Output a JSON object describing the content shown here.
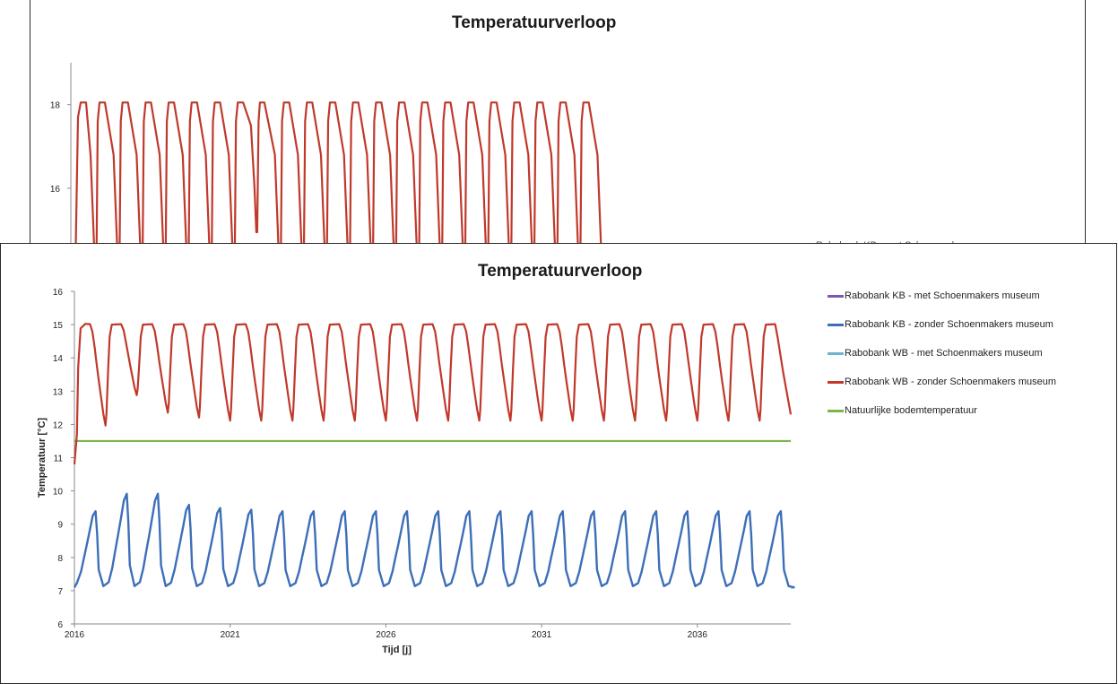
{
  "chart_data": [
    {
      "type": "line",
      "title": "Temperatuurverloop",
      "ylim": [
        14.5,
        19
      ],
      "yticks": [
        16,
        18
      ],
      "grid": false,
      "series": [
        {
          "color": "#c0392b",
          "pattern": "annual-cycle",
          "start_year": 2016,
          "cycles": 23,
          "max": 18.05,
          "min_below": 14.5,
          "anomaly": {
            "cycle": 7,
            "min": 14.95
          }
        }
      ],
      "truncated_legend": "Rabobank KB - met Schoenmakersmuseum"
    },
    {
      "type": "line",
      "title": "Temperatuurverloop",
      "xlabel": "Tijd [j]",
      "ylabel": "Temperatuur [°C]",
      "xlim": [
        2016,
        2039
      ],
      "ylim": [
        6,
        16
      ],
      "xticks": [
        2016,
        2021,
        2026,
        2031,
        2036
      ],
      "yticks": [
        6,
        7,
        8,
        9,
        10,
        11,
        12,
        13,
        14,
        15,
        16
      ],
      "grid": false,
      "legend_position": "right",
      "series": [
        {
          "name": "Rabobank KB - met Schoenmakers museum",
          "color": "#7b57b0",
          "values": []
        },
        {
          "name": "Rabobank KB - zonder Schoenmakers museum",
          "color": "#3d6fb8",
          "pattern": "annual-cycle",
          "start_year": 2016,
          "min": 7.1,
          "peaks": [
            9.7,
            10.25,
            10.25,
            9.9,
            9.8,
            9.75,
            9.7,
            9.7,
            9.7,
            9.7,
            9.7,
            9.7,
            9.7,
            9.7,
            9.7,
            9.7,
            9.7,
            9.7,
            9.7,
            9.7,
            9.7,
            9.7,
            9.7
          ],
          "end_value": 7.1
        },
        {
          "name": "Rabobank WB - met Schoenmakers museum",
          "color": "#6ab5d0",
          "values": []
        },
        {
          "name": "Rabobank WB - zonder Schoenmakers museum",
          "color": "#c0392b",
          "pattern": "annual-cycle",
          "start_value": 10.8,
          "max": 15.05,
          "troughs": [
            11.85,
            12.8,
            12.25,
            12.1,
            12.0,
            12.0,
            12.0,
            12.0,
            12.0,
            12.0,
            12.0,
            12.0,
            12.0,
            12.0,
            12.0,
            12.0,
            12.0,
            12.0,
            12.0,
            12.0,
            12.0,
            12.0
          ],
          "end_value": 12.3
        },
        {
          "name": "Natuurlijke bodemtemperatuur",
          "color": "#7ab648",
          "values": [
            11.5,
            11.5
          ],
          "x": [
            2016,
            2039
          ]
        }
      ]
    }
  ]
}
